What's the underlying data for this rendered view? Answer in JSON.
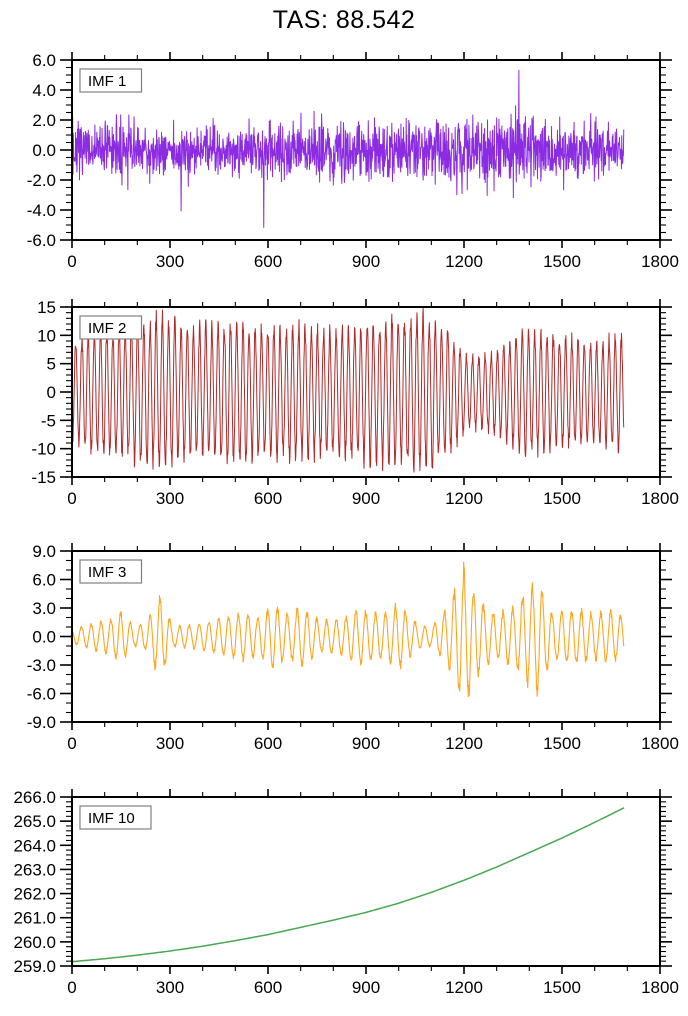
{
  "title": "TAS: 88.542",
  "figure": {
    "background": "#ffffff",
    "axis_color": "#000000",
    "tick_label_color": "#000000"
  },
  "chart_data": [
    {
      "type": "line",
      "panel_label": "IMF 1",
      "color": "#8B2BE2",
      "line_width": 1.0,
      "x": {
        "min": 0,
        "max": 1800,
        "major": 300,
        "minor": 100,
        "data_end": 1690,
        "tick_labels": [
          "0",
          "300",
          "600",
          "900",
          "1200",
          "1500",
          "1800"
        ],
        "tick_values": [
          0,
          300,
          600,
          900,
          1200,
          1500,
          1800
        ]
      },
      "ylim": [
        -6,
        6
      ],
      "y_major": 2,
      "y_minor": 0.5,
      "yticks": [
        {
          "v": 6,
          "label": "6.0"
        },
        {
          "v": 4,
          "label": "4.0"
        },
        {
          "v": 2,
          "label": "2.0"
        },
        {
          "v": 0,
          "label": "0.0"
        },
        {
          "v": -2,
          "label": "-2.0"
        },
        {
          "v": -4,
          "label": "-4.0"
        },
        {
          "v": -6,
          "label": "-6.0"
        }
      ],
      "signal": {
        "kind": "noise",
        "seed": 7,
        "n": 1690,
        "head": [
          4.6,
          -5.3,
          2.2,
          -1.6,
          1.1
        ],
        "spike_prob": 0.012,
        "spike_gain": 2.4,
        "clip": 5.7,
        "envelope": [
          [
            0,
            5.3
          ],
          [
            3,
            2.2
          ],
          [
            8,
            1.05
          ],
          [
            100,
            1.0
          ],
          [
            160,
            1.5
          ],
          [
            210,
            1.0
          ],
          [
            300,
            1.2
          ],
          [
            400,
            0.95
          ],
          [
            500,
            1.05
          ],
          [
            600,
            1.1
          ],
          [
            700,
            1.2
          ],
          [
            800,
            1.3
          ],
          [
            850,
            1.5
          ],
          [
            900,
            1.3
          ],
          [
            950,
            1.45
          ],
          [
            1000,
            1.2
          ],
          [
            1100,
            1.35
          ],
          [
            1200,
            1.5
          ],
          [
            1300,
            1.4
          ],
          [
            1400,
            1.5
          ],
          [
            1500,
            1.3
          ],
          [
            1600,
            1.25
          ],
          [
            1690,
            1.1
          ]
        ]
      }
    },
    {
      "type": "line",
      "panel_label": "IMF 2",
      "color": "#AF2B2B",
      "line_width": 1.0,
      "x": {
        "min": 0,
        "max": 1800,
        "major": 300,
        "minor": 100,
        "data_end": 1690,
        "tick_labels": [
          "0",
          "300",
          "600",
          "900",
          "1200",
          "1500",
          "1800"
        ],
        "tick_values": [
          0,
          300,
          600,
          900,
          1200,
          1500,
          1800
        ]
      },
      "ylim": [
        -15,
        15
      ],
      "y_major": 5,
      "y_minor": 1,
      "yticks": [
        {
          "v": 15,
          "label": "15"
        },
        {
          "v": 10,
          "label": "10"
        },
        {
          "v": 5,
          "label": "5"
        },
        {
          "v": 0,
          "label": "0"
        },
        {
          "v": -5,
          "label": "-5"
        },
        {
          "v": -10,
          "label": "-10"
        },
        {
          "v": -15,
          "label": "-15"
        }
      ],
      "signal": {
        "kind": "am_osc",
        "seed": 42,
        "n": 1690,
        "period": 19,
        "envelope": [
          [
            0,
            8.5
          ],
          [
            60,
            10.5
          ],
          [
            150,
            11
          ],
          [
            270,
            13
          ],
          [
            350,
            11
          ],
          [
            420,
            11.5
          ],
          [
            500,
            12
          ],
          [
            600,
            11
          ],
          [
            700,
            11.5
          ],
          [
            800,
            10.5
          ],
          [
            900,
            12
          ],
          [
            1000,
            12.5
          ],
          [
            1080,
            13.5
          ],
          [
            1150,
            11
          ],
          [
            1210,
            6
          ],
          [
            1260,
            6.5
          ],
          [
            1310,
            7.5
          ],
          [
            1380,
            10.5
          ],
          [
            1450,
            10
          ],
          [
            1520,
            9.5
          ],
          [
            1600,
            8.5
          ],
          [
            1650,
            9.5
          ],
          [
            1690,
            10
          ]
        ]
      }
    },
    {
      "type": "line",
      "panel_label": "IMF 3",
      "color": "#FFA51E",
      "line_width": 1.1,
      "x": {
        "min": 0,
        "max": 1800,
        "major": 300,
        "minor": 100,
        "data_end": 1690,
        "tick_labels": [
          "0",
          "300",
          "600",
          "900",
          "1200",
          "1500",
          "1800"
        ],
        "tick_values": [
          0,
          300,
          600,
          900,
          1200,
          1500,
          1800
        ]
      },
      "ylim": [
        -9,
        9
      ],
      "y_major": 3,
      "y_minor": 1,
      "yticks": [
        {
          "v": 9,
          "label": "9.0"
        },
        {
          "v": 6,
          "label": "6.0"
        },
        {
          "v": 3,
          "label": "3.0"
        },
        {
          "v": 0,
          "label": "0.0"
        },
        {
          "v": -3,
          "label": "-3.0"
        },
        {
          "v": -6,
          "label": "-6.0"
        },
        {
          "v": -9,
          "label": "-9.0"
        }
      ],
      "signal": {
        "kind": "am_osc",
        "seed": 99,
        "n": 1690,
        "period": 30,
        "envelope": [
          [
            0,
            0.7
          ],
          [
            60,
            1.3
          ],
          [
            120,
            1.8
          ],
          [
            150,
            2.6
          ],
          [
            190,
            1.0
          ],
          [
            230,
            1.5
          ],
          [
            270,
            4.2
          ],
          [
            310,
            1.0
          ],
          [
            380,
            1.3
          ],
          [
            450,
            1.8
          ],
          [
            520,
            2.4
          ],
          [
            570,
            2.0
          ],
          [
            620,
            3.3
          ],
          [
            660,
            2.2
          ],
          [
            700,
            3.0
          ],
          [
            760,
            1.6
          ],
          [
            820,
            1.8
          ],
          [
            880,
            2.8
          ],
          [
            950,
            2.2
          ],
          [
            1000,
            3.3
          ],
          [
            1060,
            1.2
          ],
          [
            1100,
            1.0
          ],
          [
            1150,
            3.0
          ],
          [
            1200,
            7.0
          ],
          [
            1250,
            3.5
          ],
          [
            1300,
            2.2
          ],
          [
            1350,
            3.0
          ],
          [
            1420,
            5.8
          ],
          [
            1470,
            2.5
          ],
          [
            1540,
            2.8
          ],
          [
            1600,
            2.3
          ],
          [
            1650,
            2.6
          ],
          [
            1690,
            2.0
          ]
        ]
      }
    },
    {
      "type": "line",
      "panel_label": "IMF 10",
      "color": "#46A852",
      "line_width": 1.5,
      "x": {
        "min": 0,
        "max": 1800,
        "major": 300,
        "minor": 100,
        "data_end": 1690,
        "tick_labels": [
          "0",
          "300",
          "600",
          "900",
          "1200",
          "1500",
          "1800"
        ],
        "tick_values": [
          0,
          300,
          600,
          900,
          1200,
          1500,
          1800
        ]
      },
      "ylim": [
        259,
        266
      ],
      "y_major": 1,
      "y_minor": 0.2,
      "yticks": [
        {
          "v": 266,
          "label": "266.0"
        },
        {
          "v": 265,
          "label": "265.0"
        },
        {
          "v": 264,
          "label": "264.0"
        },
        {
          "v": 263,
          "label": "263.0"
        },
        {
          "v": 262,
          "label": "262.0"
        },
        {
          "v": 261,
          "label": "261.0"
        },
        {
          "v": 260,
          "label": "260.0"
        },
        {
          "v": 259,
          "label": "259.0"
        }
      ],
      "signal": {
        "kind": "points",
        "points": [
          [
            0,
            259.18
          ],
          [
            100,
            259.3
          ],
          [
            200,
            259.45
          ],
          [
            300,
            259.62
          ],
          [
            400,
            259.82
          ],
          [
            500,
            260.05
          ],
          [
            600,
            260.3
          ],
          [
            700,
            260.6
          ],
          [
            800,
            260.9
          ],
          [
            900,
            261.22
          ],
          [
            1000,
            261.6
          ],
          [
            1100,
            262.05
          ],
          [
            1200,
            262.55
          ],
          [
            1300,
            263.1
          ],
          [
            1400,
            263.7
          ],
          [
            1500,
            264.3
          ],
          [
            1600,
            264.95
          ],
          [
            1690,
            265.55
          ]
        ]
      }
    }
  ]
}
